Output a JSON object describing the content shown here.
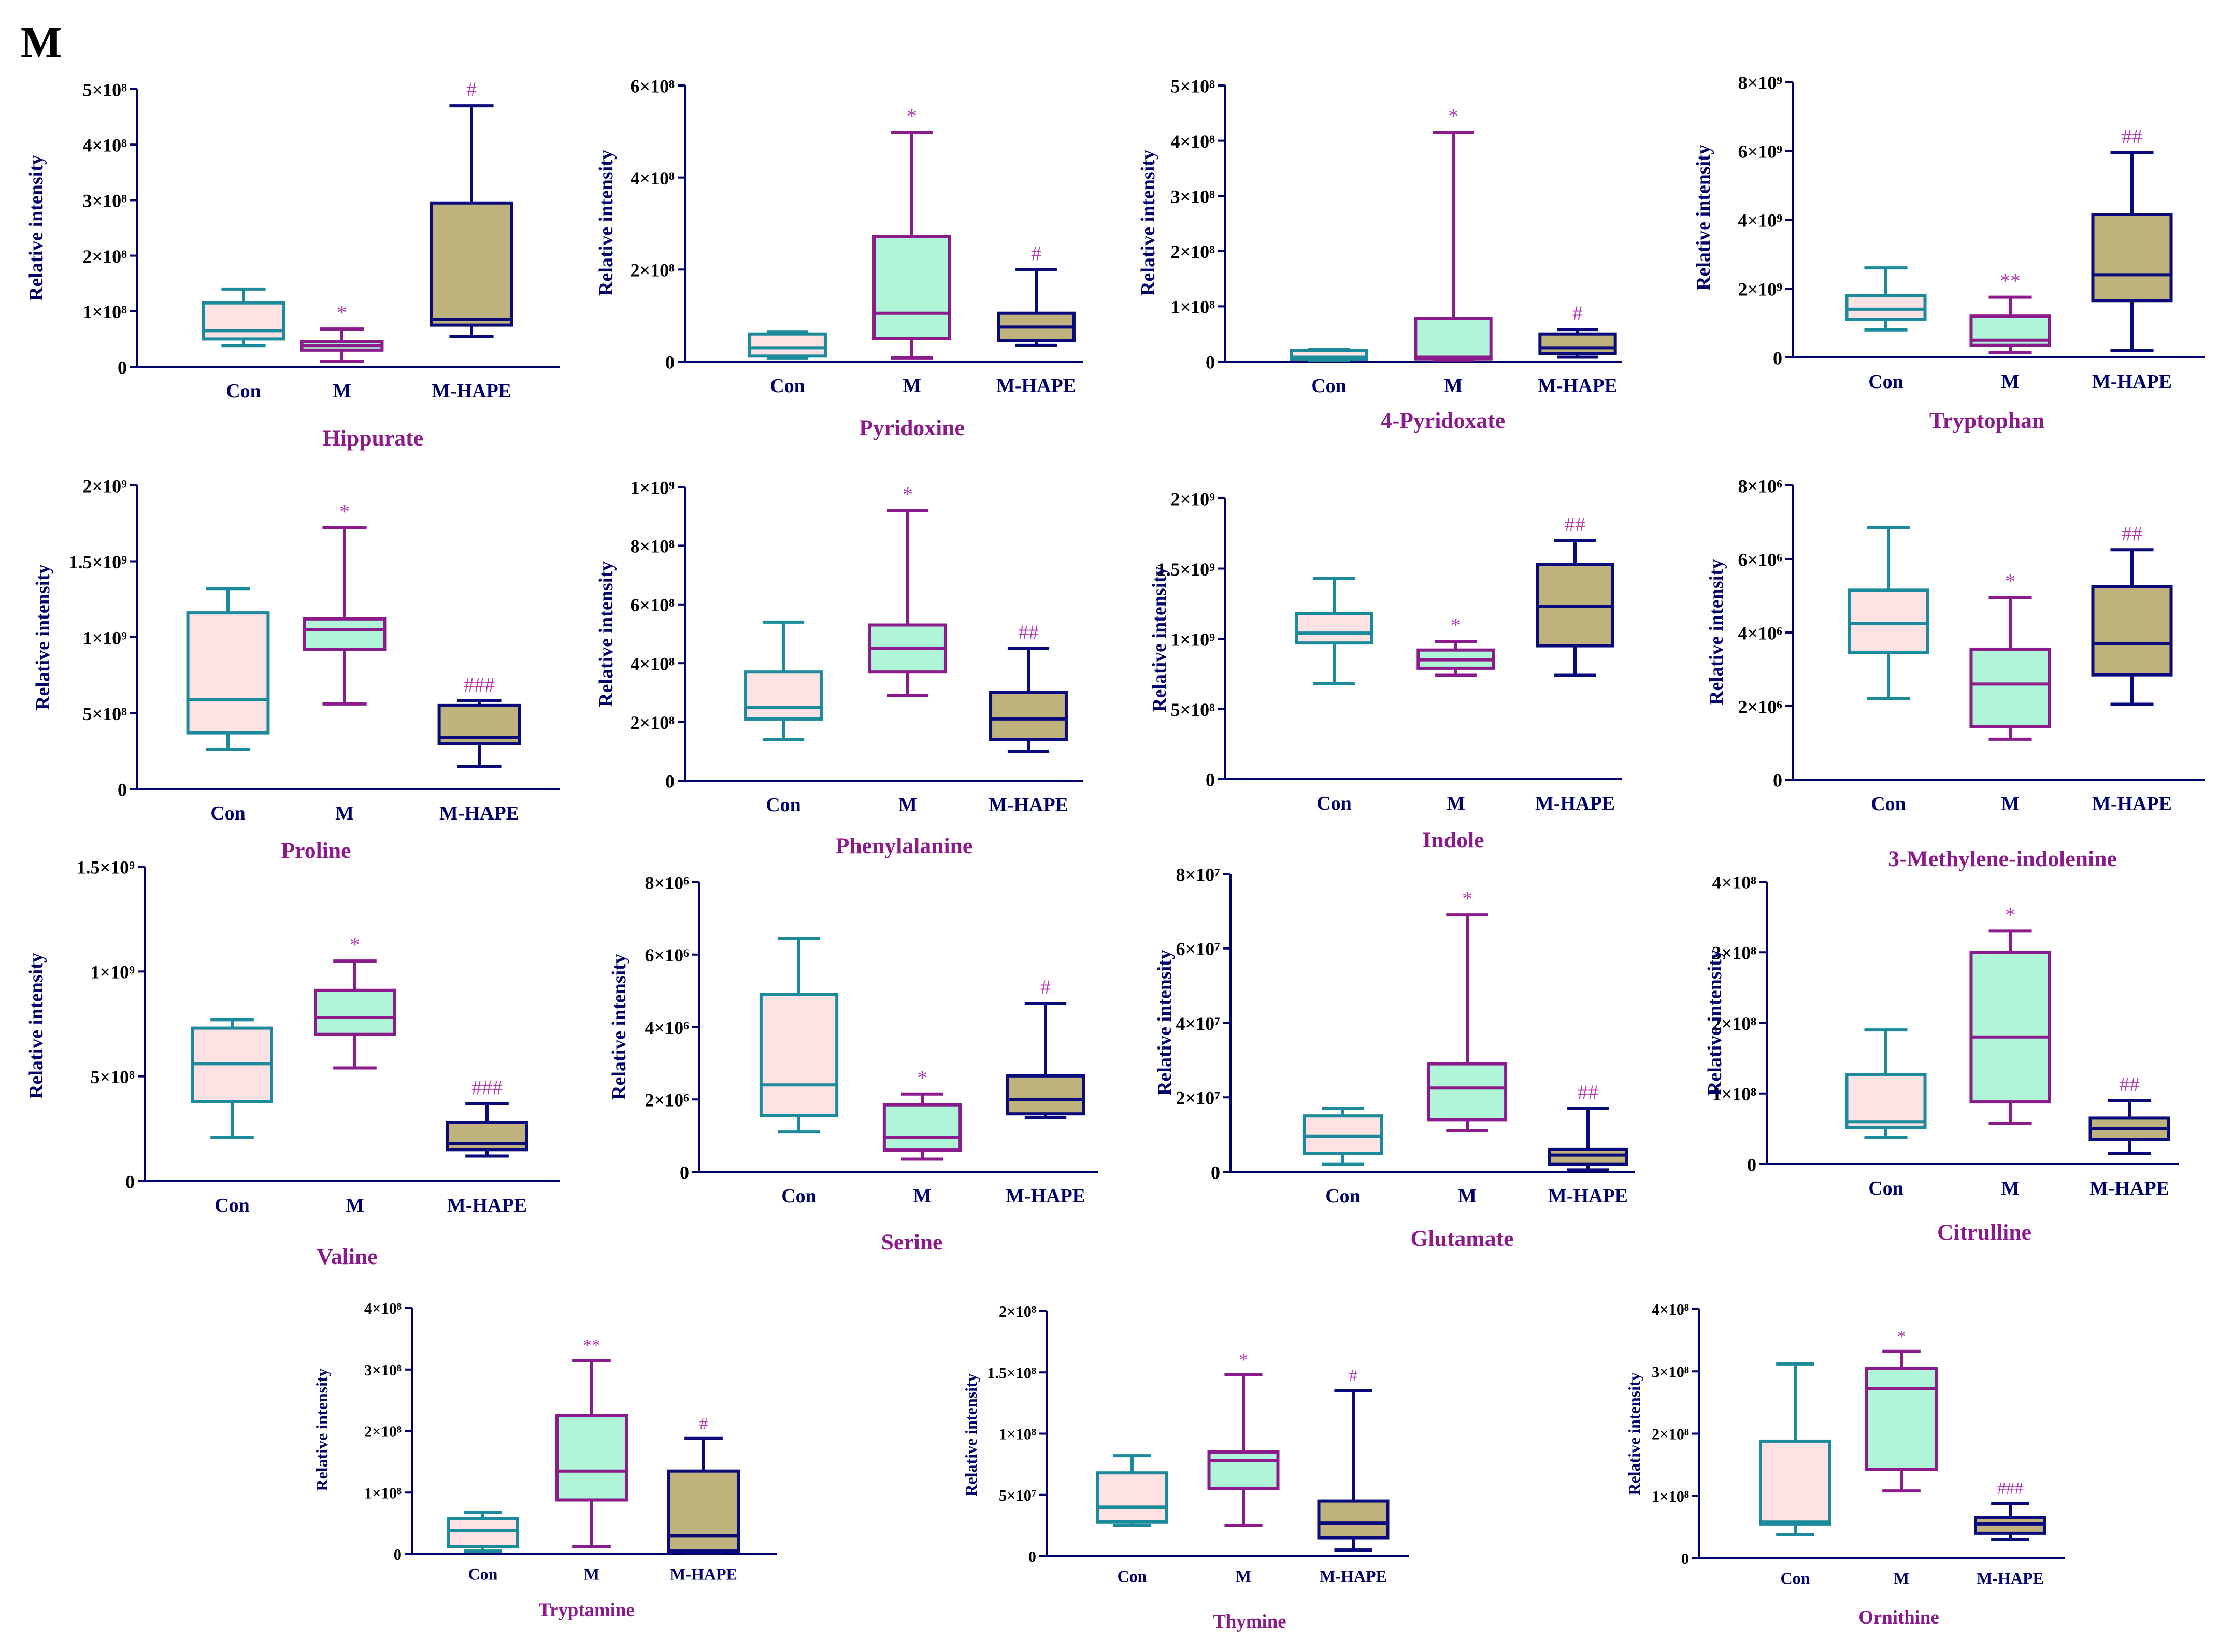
{
  "figure_label": "M",
  "colors": {
    "con_stroke": "#1b8a9a",
    "con_fill": "#fde2e4",
    "m_stroke": "#8b1a8b",
    "m_fill": "#b0f5d8",
    "hape_stroke": "#0a0a7a",
    "hape_fill": "#bfb27c",
    "axis": "#00006b",
    "title": "#8b1a8b",
    "sig": "#b23fb2"
  },
  "chart_data": [
    {
      "type": "box",
      "title": "Hippurate",
      "ylabel": "Relative intensity",
      "categories": [
        "Con",
        "M",
        "M-HAPE"
      ],
      "ylim": [
        0,
        500000000
      ],
      "yticks": [
        {
          "v": 0,
          "label": "0"
        },
        {
          "v": 100000000,
          "label": "1×10⁸"
        },
        {
          "v": 200000000,
          "label": "2×10⁸"
        },
        {
          "v": 300000000,
          "label": "3×10⁸"
        },
        {
          "v": 400000000,
          "label": "4×10⁸"
        },
        {
          "v": 500000000,
          "label": "5×10⁸"
        }
      ],
      "boxes": [
        {
          "min": 38000000,
          "q1": 50000000,
          "median": 65000000,
          "q3": 115000000,
          "max": 140000000,
          "sig": ""
        },
        {
          "min": 10000000,
          "q1": 30000000,
          "median": 38000000,
          "q3": 45000000,
          "max": 68000000,
          "sig": "*"
        },
        {
          "min": 55000000,
          "q1": 75000000,
          "median": 85000000,
          "q3": 295000000,
          "max": 470000000,
          "sig": "#"
        }
      ]
    },
    {
      "type": "box",
      "title": "Pyridoxine",
      "ylabel": "Relative intensity",
      "categories": [
        "Con",
        "M",
        "M-HAPE"
      ],
      "ylim": [
        0,
        600000000
      ],
      "yticks": [
        {
          "v": 0,
          "label": "0"
        },
        {
          "v": 200000000,
          "label": "2×10⁸"
        },
        {
          "v": 400000000,
          "label": "4×10⁸"
        },
        {
          "v": 600000000,
          "label": "6×10⁸"
        }
      ],
      "boxes": [
        {
          "min": 8000000,
          "q1": 12000000,
          "median": 30000000,
          "q3": 60000000,
          "max": 65000000,
          "sig": ""
        },
        {
          "min": 8000000,
          "q1": 50000000,
          "median": 105000000,
          "q3": 272000000,
          "max": 498000000,
          "sig": "*"
        },
        {
          "min": 35000000,
          "q1": 45000000,
          "median": 75000000,
          "q3": 105000000,
          "max": 200000000,
          "sig": "#"
        }
      ]
    },
    {
      "type": "box",
      "title": "4-Pyridoxate",
      "ylabel": "Relative intensity",
      "categories": [
        "Con",
        "M",
        "M-HAPE"
      ],
      "ylim": [
        0,
        500000000
      ],
      "yticks": [
        {
          "v": 0,
          "label": "0"
        },
        {
          "v": 100000000,
          "label": "1×10⁸"
        },
        {
          "v": 200000000,
          "label": "2×10⁸"
        },
        {
          "v": 300000000,
          "label": "3×10⁸"
        },
        {
          "v": 400000000,
          "label": "4×10⁸"
        },
        {
          "v": 500000000,
          "label": "5×10⁸"
        }
      ],
      "boxes": [
        {
          "min": 2000000,
          "q1": 4000000,
          "median": 8000000,
          "q3": 20000000,
          "max": 22000000,
          "sig": ""
        },
        {
          "min": 3000000,
          "q1": 5000000,
          "median": 8000000,
          "q3": 78000000,
          "max": 415000000,
          "sig": "*"
        },
        {
          "min": 8000000,
          "q1": 15000000,
          "median": 25000000,
          "q3": 50000000,
          "max": 58000000,
          "sig": "#"
        }
      ]
    },
    {
      "type": "box",
      "title": "Tryptophan",
      "ylabel": "Relative intensity",
      "categories": [
        "Con",
        "M",
        "M-HAPE"
      ],
      "ylim": [
        0,
        8000000000
      ],
      "yticks": [
        {
          "v": 0,
          "label": "0"
        },
        {
          "v": 2000000000,
          "label": "2×10⁹"
        },
        {
          "v": 4000000000,
          "label": "4×10⁹"
        },
        {
          "v": 6000000000,
          "label": "6×10⁹"
        },
        {
          "v": 8000000000,
          "label": "8×10⁹"
        }
      ],
      "boxes": [
        {
          "min": 800000000,
          "q1": 1100000000,
          "median": 1400000000,
          "q3": 1800000000,
          "max": 2600000000,
          "sig": ""
        },
        {
          "min": 150000000,
          "q1": 350000000,
          "median": 500000000,
          "q3": 1200000000,
          "max": 1750000000,
          "sig": "**"
        },
        {
          "min": 200000000,
          "q1": 1650000000,
          "median": 2400000000,
          "q3": 4150000000,
          "max": 5950000000,
          "sig": "##"
        }
      ]
    },
    {
      "type": "box",
      "title": "Proline",
      "ylabel": "Relative intensity",
      "categories": [
        "Con",
        "M",
        "M-HAPE"
      ],
      "ylim": [
        0,
        2000000000
      ],
      "yticks": [
        {
          "v": 0,
          "label": "0"
        },
        {
          "v": 500000000,
          "label": "5×10⁸"
        },
        {
          "v": 1000000000,
          "label": "1×10⁹"
        },
        {
          "v": 1500000000,
          "label": "1.5×10⁹"
        },
        {
          "v": 2000000000,
          "label": "2×10⁹"
        }
      ],
      "boxes": [
        {
          "min": 260000000,
          "q1": 370000000,
          "median": 590000000,
          "q3": 1160000000,
          "max": 1320000000,
          "sig": ""
        },
        {
          "min": 560000000,
          "q1": 920000000,
          "median": 1050000000,
          "q3": 1120000000,
          "max": 1720000000,
          "sig": "*"
        },
        {
          "min": 150000000,
          "q1": 300000000,
          "median": 340000000,
          "q3": 550000000,
          "max": 580000000,
          "sig": "###"
        }
      ]
    },
    {
      "type": "box",
      "title": "Phenylalanine",
      "ylabel": "Relative intensity",
      "categories": [
        "Con",
        "M",
        "M-HAPE"
      ],
      "ylim": [
        0,
        1000000000
      ],
      "yticks": [
        {
          "v": 0,
          "label": "0"
        },
        {
          "v": 200000000,
          "label": "2×10⁸"
        },
        {
          "v": 400000000,
          "label": "4×10⁸"
        },
        {
          "v": 600000000,
          "label": "6×10⁸"
        },
        {
          "v": 800000000,
          "label": "8×10⁸"
        },
        {
          "v": 1000000000,
          "label": "1×10⁹"
        }
      ],
      "boxes": [
        {
          "min": 140000000,
          "q1": 210000000,
          "median": 250000000,
          "q3": 370000000,
          "max": 540000000,
          "sig": ""
        },
        {
          "min": 290000000,
          "q1": 370000000,
          "median": 450000000,
          "q3": 530000000,
          "max": 920000000,
          "sig": "*"
        },
        {
          "min": 100000000,
          "q1": 140000000,
          "median": 210000000,
          "q3": 300000000,
          "max": 450000000,
          "sig": "##"
        }
      ]
    },
    {
      "type": "box",
      "title": "Indole",
      "ylabel": "Relative intensity",
      "categories": [
        "Con",
        "M",
        "M-HAPE"
      ],
      "ylim": [
        0,
        2000000000
      ],
      "yticks": [
        {
          "v": 0,
          "label": "0"
        },
        {
          "v": 500000000,
          "label": "5×10⁸"
        },
        {
          "v": 1000000000,
          "label": "1×10⁹"
        },
        {
          "v": 1500000000,
          "label": "1.5×10⁹"
        },
        {
          "v": 2000000000,
          "label": "2×10⁹"
        }
      ],
      "boxes": [
        {
          "min": 680000000,
          "q1": 970000000,
          "median": 1040000000,
          "q3": 1180000000,
          "max": 1430000000,
          "sig": ""
        },
        {
          "min": 740000000,
          "q1": 790000000,
          "median": 850000000,
          "q3": 920000000,
          "max": 980000000,
          "sig": "*"
        },
        {
          "min": 740000000,
          "q1": 950000000,
          "median": 1230000000,
          "q3": 1530000000,
          "max": 1700000000,
          "sig": "##"
        }
      ]
    },
    {
      "type": "box",
      "title": "3-Methylene-indolenine",
      "ylabel": "Relative intensity",
      "categories": [
        "Con",
        "M",
        "M-HAPE"
      ],
      "ylim": [
        0,
        8000000
      ],
      "yticks": [
        {
          "v": 0,
          "label": "0"
        },
        {
          "v": 2000000,
          "label": "2×10⁶"
        },
        {
          "v": 4000000,
          "label": "4×10⁶"
        },
        {
          "v": 6000000,
          "label": "6×10⁶"
        },
        {
          "v": 8000000,
          "label": "8×10⁶"
        }
      ],
      "boxes": [
        {
          "min": 2200000,
          "q1": 3450000,
          "median": 4250000,
          "q3": 5150000,
          "max": 6850000,
          "sig": ""
        },
        {
          "min": 1100000,
          "q1": 1450000,
          "median": 2600000,
          "q3": 3550000,
          "max": 4950000,
          "sig": "*"
        },
        {
          "min": 2050000,
          "q1": 2850000,
          "median": 3700000,
          "q3": 5250000,
          "max": 6250000,
          "sig": "##"
        }
      ]
    },
    {
      "type": "box",
      "title": "Valine",
      "ylabel": "Relative intensity",
      "categories": [
        "Con",
        "M",
        "M-HAPE"
      ],
      "ylim": [
        0,
        1500000000
      ],
      "yticks": [
        {
          "v": 0,
          "label": "0"
        },
        {
          "v": 500000000,
          "label": "5×10⁸"
        },
        {
          "v": 1000000000,
          "label": "1×10⁹"
        },
        {
          "v": 1500000000,
          "label": "1.5×10⁹"
        }
      ],
      "boxes": [
        {
          "min": 210000000,
          "q1": 380000000,
          "median": 560000000,
          "q3": 730000000,
          "max": 770000000,
          "sig": ""
        },
        {
          "min": 540000000,
          "q1": 700000000,
          "median": 780000000,
          "q3": 910000000,
          "max": 1050000000,
          "sig": "*"
        },
        {
          "min": 120000000,
          "q1": 150000000,
          "median": 180000000,
          "q3": 280000000,
          "max": 370000000,
          "sig": "###"
        }
      ]
    },
    {
      "type": "box",
      "title": "Serine",
      "ylabel": "Relative intensity",
      "categories": [
        "Con",
        "M",
        "M-HAPE"
      ],
      "ylim": [
        0,
        8000000
      ],
      "yticks": [
        {
          "v": 0,
          "label": "0"
        },
        {
          "v": 2000000,
          "label": "2×10⁶"
        },
        {
          "v": 4000000,
          "label": "4×10⁶"
        },
        {
          "v": 6000000,
          "label": "6×10⁶"
        },
        {
          "v": 8000000,
          "label": "8×10⁶"
        }
      ],
      "boxes": [
        {
          "min": 1100000,
          "q1": 1550000,
          "median": 2400000,
          "q3": 4900000,
          "max": 6450000,
          "sig": ""
        },
        {
          "min": 350000,
          "q1": 600000,
          "median": 950000,
          "q3": 1850000,
          "max": 2150000,
          "sig": "*"
        },
        {
          "min": 1500000,
          "q1": 1600000,
          "median": 2000000,
          "q3": 2650000,
          "max": 4650000,
          "sig": "#"
        }
      ]
    },
    {
      "type": "box",
      "title": "Glutamate",
      "ylabel": "Relative intensity",
      "categories": [
        "Con",
        "M",
        "M-HAPE"
      ],
      "ylim": [
        0,
        80000000
      ],
      "yticks": [
        {
          "v": 0,
          "label": "0"
        },
        {
          "v": 20000000,
          "label": "2×10⁷"
        },
        {
          "v": 40000000,
          "label": "4×10⁷"
        },
        {
          "v": 60000000,
          "label": "6×10⁷"
        },
        {
          "v": 80000000,
          "label": "8×10⁷"
        }
      ],
      "boxes": [
        {
          "min": 2000000,
          "q1": 5000000,
          "median": 9500000,
          "q3": 15000000,
          "max": 17000000,
          "sig": ""
        },
        {
          "min": 11000000,
          "q1": 14000000,
          "median": 22500000,
          "q3": 29000000,
          "max": 69000000,
          "sig": "*"
        },
        {
          "min": 500000,
          "q1": 2000000,
          "median": 4500000,
          "q3": 6000000,
          "max": 17000000,
          "sig": "##"
        }
      ]
    },
    {
      "type": "box",
      "title": "Citrulline",
      "ylabel": "Relative intensity",
      "categories": [
        "Con",
        "M",
        "M-HAPE"
      ],
      "ylim": [
        0,
        400000000
      ],
      "yticks": [
        {
          "v": 0,
          "label": "0"
        },
        {
          "v": 100000000,
          "label": "1×10⁸"
        },
        {
          "v": 200000000,
          "label": "2×10⁸"
        },
        {
          "v": 300000000,
          "label": "3×10⁸"
        },
        {
          "v": 400000000,
          "label": "4×10⁸"
        }
      ],
      "boxes": [
        {
          "min": 38000000,
          "q1": 52000000,
          "median": 60000000,
          "q3": 127000000,
          "max": 190000000,
          "sig": ""
        },
        {
          "min": 58000000,
          "q1": 88000000,
          "median": 180000000,
          "q3": 300000000,
          "max": 330000000,
          "sig": "*"
        },
        {
          "min": 15000000,
          "q1": 35000000,
          "median": 50000000,
          "q3": 65000000,
          "max": 90000000,
          "sig": "##"
        }
      ]
    },
    {
      "type": "box",
      "title": "Tryptamine",
      "ylabel": "Relative intensity",
      "categories": [
        "Con",
        "M",
        "M-HAPE"
      ],
      "ylim": [
        0,
        400000000
      ],
      "yticks": [
        {
          "v": 0,
          "label": "0"
        },
        {
          "v": 100000000,
          "label": "1×10⁸"
        },
        {
          "v": 200000000,
          "label": "2×10⁸"
        },
        {
          "v": 300000000,
          "label": "3×10⁸"
        },
        {
          "v": 400000000,
          "label": "4×10⁸"
        }
      ],
      "boxes": [
        {
          "min": 5000000,
          "q1": 12000000,
          "median": 38000000,
          "q3": 58000000,
          "max": 68000000,
          "sig": ""
        },
        {
          "min": 12000000,
          "q1": 88000000,
          "median": 135000000,
          "q3": 225000000,
          "max": 315000000,
          "sig": "**"
        },
        {
          "min": 2000000,
          "q1": 5000000,
          "median": 30000000,
          "q3": 135000000,
          "max": 188000000,
          "sig": "#"
        }
      ]
    },
    {
      "type": "box",
      "title": "Thymine",
      "ylabel": "Relative intensity",
      "categories": [
        "Con",
        "M",
        "M-HAPE"
      ],
      "ylim": [
        0,
        200000000
      ],
      "yticks": [
        {
          "v": 0,
          "label": "0"
        },
        {
          "v": 50000000,
          "label": "5×10⁷"
        },
        {
          "v": 100000000,
          "label": "1×10⁸"
        },
        {
          "v": 150000000,
          "label": "1.5×10⁸"
        },
        {
          "v": 200000000,
          "label": "2×10⁸"
        }
      ],
      "boxes": [
        {
          "min": 25000000,
          "q1": 28000000,
          "median": 40000000,
          "q3": 68000000,
          "max": 82000000,
          "sig": ""
        },
        {
          "min": 25000000,
          "q1": 55000000,
          "median": 78000000,
          "q3": 85000000,
          "max": 148000000,
          "sig": "*"
        },
        {
          "min": 5000000,
          "q1": 15000000,
          "median": 27000000,
          "q3": 45000000,
          "max": 135000000,
          "sig": "#"
        }
      ]
    },
    {
      "type": "box",
      "title": "Ornithine",
      "ylabel": "Relative intensity",
      "categories": [
        "Con",
        "M",
        "M-HAPE"
      ],
      "ylim": [
        0,
        400000000
      ],
      "yticks": [
        {
          "v": 0,
          "label": "0"
        },
        {
          "v": 100000000,
          "label": "1×10⁸"
        },
        {
          "v": 200000000,
          "label": "2×10⁸"
        },
        {
          "v": 300000000,
          "label": "3×10⁸"
        },
        {
          "v": 400000000,
          "label": "4×10⁸"
        }
      ],
      "boxes": [
        {
          "min": 38000000,
          "q1": 55000000,
          "median": 58000000,
          "q3": 188000000,
          "max": 312000000,
          "sig": ""
        },
        {
          "min": 108000000,
          "q1": 143000000,
          "median": 272000000,
          "q3": 305000000,
          "max": 332000000,
          "sig": "*"
        },
        {
          "min": 30000000,
          "q1": 40000000,
          "median": 55000000,
          "q3": 65000000,
          "max": 88000000,
          "sig": "###"
        }
      ]
    }
  ]
}
